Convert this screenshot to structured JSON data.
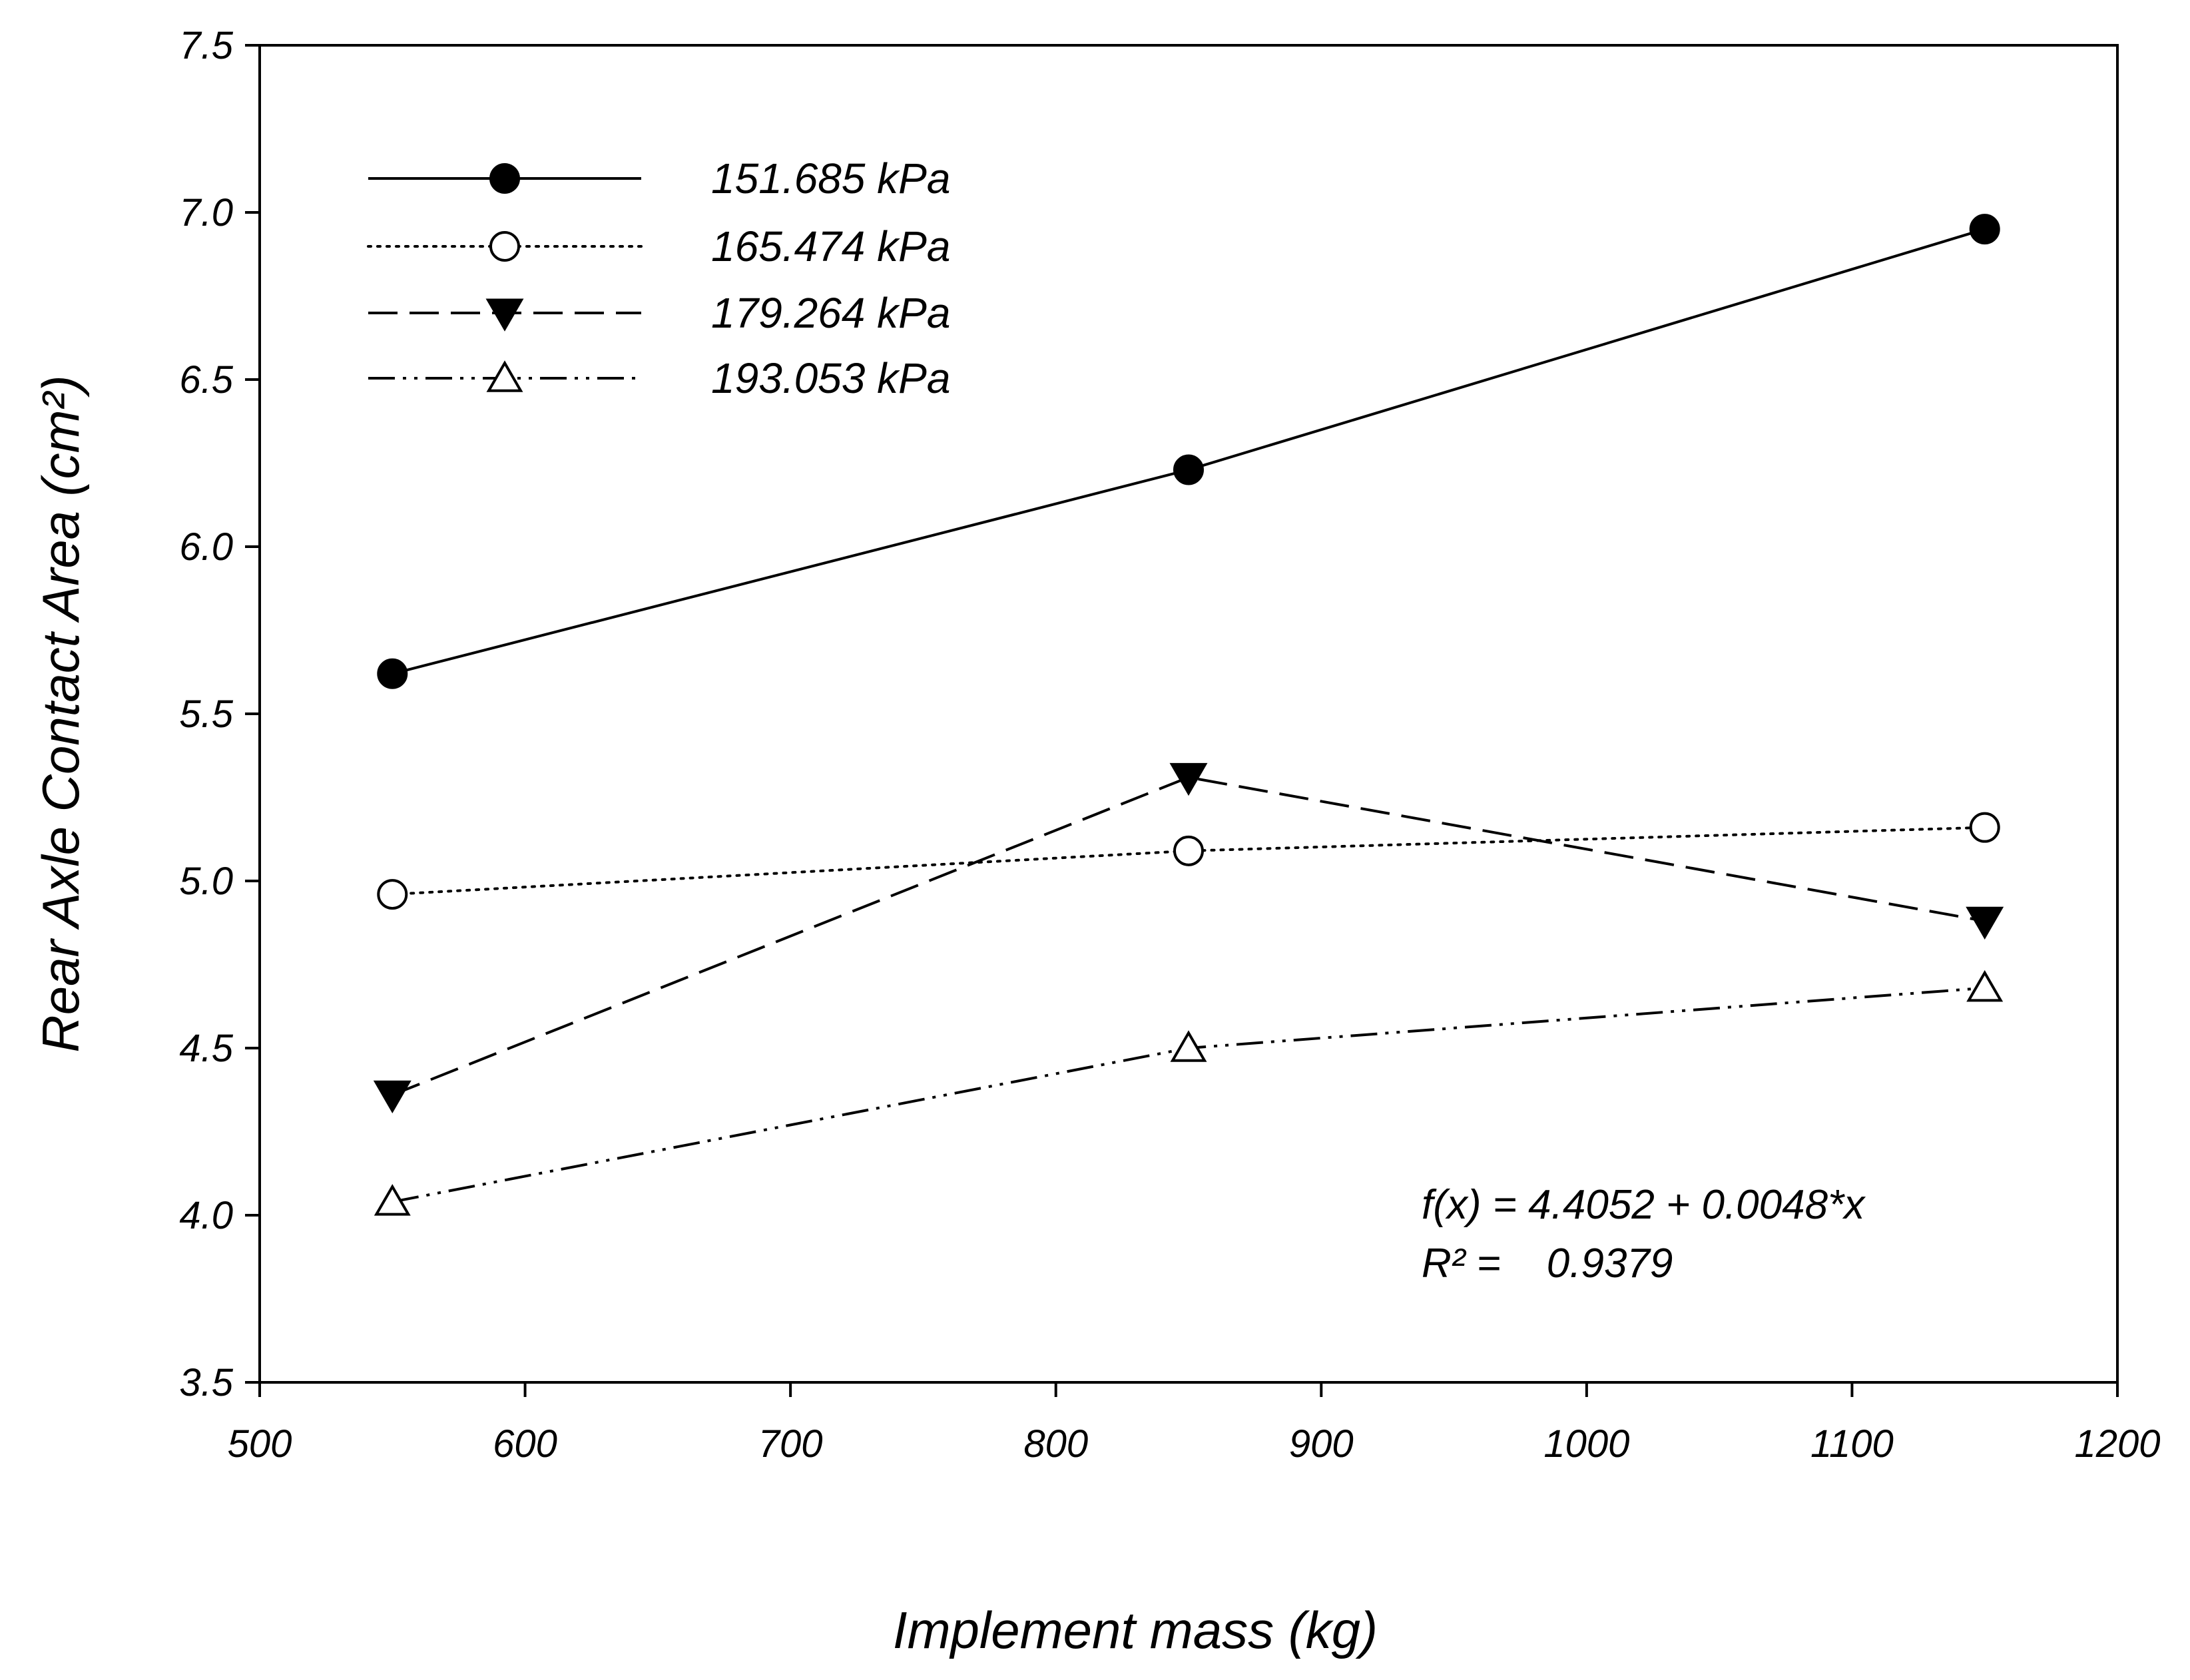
{
  "chart_data": {
    "type": "line",
    "title": "",
    "xlabel": "Implement mass (kg)",
    "ylabel": "Rear Axle Contact Area (cm²)",
    "xlim": [
      500,
      1200
    ],
    "ylim": [
      3.5,
      7.5
    ],
    "xticks": [
      500,
      600,
      700,
      800,
      900,
      1000,
      1100,
      1200
    ],
    "yticks": [
      "3.5",
      "4.0",
      "4.5",
      "5.0",
      "5.5",
      "6.0",
      "6.5",
      "7.0",
      "7.5"
    ],
    "grid": false,
    "legend_position": "top-left",
    "x": [
      550,
      850,
      1150
    ],
    "series": [
      {
        "name": "151.685 kPa",
        "values": [
          5.62,
          6.23,
          6.95
        ],
        "line": "solid",
        "marker": "filled-circle",
        "color": "#000000"
      },
      {
        "name": "165.474 kPa",
        "values": [
          4.96,
          5.09,
          5.16
        ],
        "line": "dotted",
        "marker": "open-circle",
        "color": "#000000"
      },
      {
        "name": "179.264 kPa",
        "values": [
          4.36,
          5.31,
          4.88
        ],
        "line": "dashed",
        "marker": "filled-triangle-down",
        "color": "#000000"
      },
      {
        "name": "193.053 kPa",
        "values": [
          4.04,
          4.5,
          4.68
        ],
        "line": "dash-dot-dot",
        "marker": "open-triangle-up",
        "color": "#000000"
      }
    ],
    "annotations": [
      "f(x) = 4.4052 + 0.0048*x",
      "R² =    0.9379"
    ]
  }
}
